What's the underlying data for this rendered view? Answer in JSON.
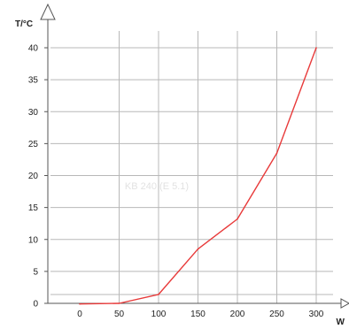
{
  "chart_data": {
    "type": "line",
    "title": "",
    "xlabel": "W",
    "ylabel": "T/°C",
    "annotation": "KB 240 (E 5.1)",
    "x_ticks": [
      0,
      50,
      100,
      150,
      200,
      250,
      300
    ],
    "y_ticks": [
      0,
      5,
      10,
      15,
      20,
      25,
      30,
      35,
      40
    ],
    "xlim": [
      -50,
      330
    ],
    "ylim": [
      0,
      42
    ],
    "grid": true,
    "series": [
      {
        "x": [
          0,
          50,
          100,
          150,
          200,
          250,
          300
        ],
        "y": [
          -0.1,
          0,
          1.4,
          8.5,
          13.2,
          23.5,
          40
        ]
      }
    ]
  },
  "colors": {
    "line": "#e83a3a",
    "grid": "#b8b8b8",
    "axis": "#555555",
    "text": "#222222",
    "annotation": "#e2e2e2"
  }
}
